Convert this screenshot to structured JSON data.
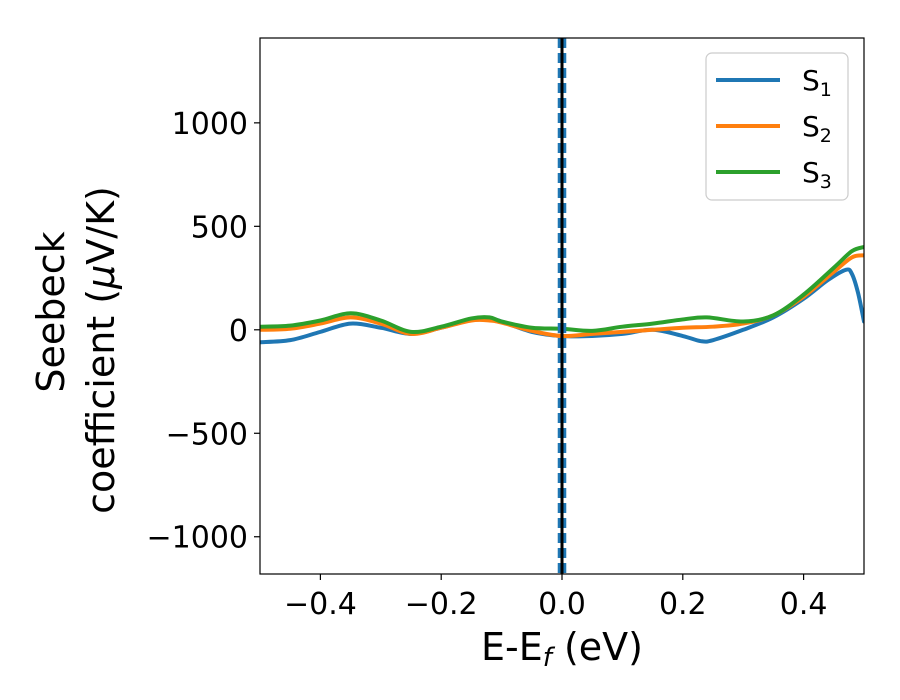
{
  "chart_data": {
    "type": "line",
    "xlabel_main": "E-E",
    "xlabel_sub": "f",
    "xlabel_unit": " (eV)",
    "ylabel_line1": "Seebeck",
    "ylabel_line2_text": "coefficient  (",
    "ylabel_mu": "μ",
    "ylabel_unit": "V/K)",
    "xlim": [
      -0.5,
      0.5
    ],
    "ylim": [
      -1180,
      1410
    ],
    "xticks": [
      -0.4,
      -0.2,
      0.0,
      0.2,
      0.4
    ],
    "xtick_labels": [
      "−0.4",
      "−0.2",
      "0.0",
      "0.2",
      "0.4"
    ],
    "yticks": [
      -1000,
      -500,
      0,
      500,
      1000
    ],
    "ytick_labels": [
      "−1000",
      "−500",
      "0",
      "500",
      "1000"
    ],
    "grid": false,
    "legend_position": "top-right",
    "vlines": [
      {
        "x": 0.0,
        "style": "solid",
        "color": "#000000"
      },
      {
        "x": -0.005,
        "style": "dashed",
        "color": "#1f77b4"
      },
      {
        "x": 0.005,
        "style": "dashed",
        "color": "#1f77b4"
      },
      {
        "x": -0.0025,
        "style": "dashed",
        "color": "#1f77b4"
      },
      {
        "x": 0.0025,
        "style": "dashed",
        "color": "#1f77b4"
      }
    ],
    "series": [
      {
        "name": "S",
        "sub": "1",
        "color": "#1f77b4",
        "x": [
          -0.5,
          -0.45,
          -0.4,
          -0.35,
          -0.3,
          -0.25,
          -0.2,
          -0.15,
          -0.12,
          -0.1,
          -0.05,
          0.0,
          0.05,
          0.1,
          0.15,
          0.2,
          0.23,
          0.25,
          0.3,
          0.35,
          0.4,
          0.44,
          0.47,
          0.48,
          0.49,
          0.5
        ],
        "y": [
          -60,
          -50,
          -10,
          30,
          10,
          -20,
          10,
          50,
          55,
          40,
          -10,
          -30,
          -30,
          -20,
          0,
          -30,
          -55,
          -50,
          0,
          60,
          150,
          240,
          290,
          270,
          180,
          40
        ]
      },
      {
        "name": "S",
        "sub": "2",
        "color": "#ff7f0e",
        "x": [
          -0.5,
          -0.45,
          -0.4,
          -0.35,
          -0.3,
          -0.25,
          -0.2,
          -0.15,
          -0.12,
          -0.1,
          -0.05,
          0.0,
          0.05,
          0.1,
          0.15,
          0.2,
          0.25,
          0.3,
          0.35,
          0.4,
          0.45,
          0.48,
          0.5
        ],
        "y": [
          0,
          5,
          30,
          60,
          30,
          -20,
          10,
          45,
          45,
          35,
          -5,
          -30,
          -20,
          -10,
          0,
          10,
          15,
          30,
          70,
          160,
          280,
          350,
          360
        ]
      },
      {
        "name": "S",
        "sub": "3",
        "color": "#2ca02c",
        "x": [
          -0.5,
          -0.45,
          -0.4,
          -0.35,
          -0.3,
          -0.25,
          -0.2,
          -0.15,
          -0.12,
          -0.1,
          -0.05,
          0.0,
          0.05,
          0.1,
          0.15,
          0.2,
          0.24,
          0.3,
          0.35,
          0.4,
          0.45,
          0.48,
          0.5
        ],
        "y": [
          15,
          20,
          45,
          80,
          45,
          -10,
          15,
          55,
          60,
          40,
          10,
          5,
          -5,
          15,
          30,
          50,
          60,
          40,
          70,
          170,
          300,
          380,
          400
        ]
      }
    ]
  }
}
